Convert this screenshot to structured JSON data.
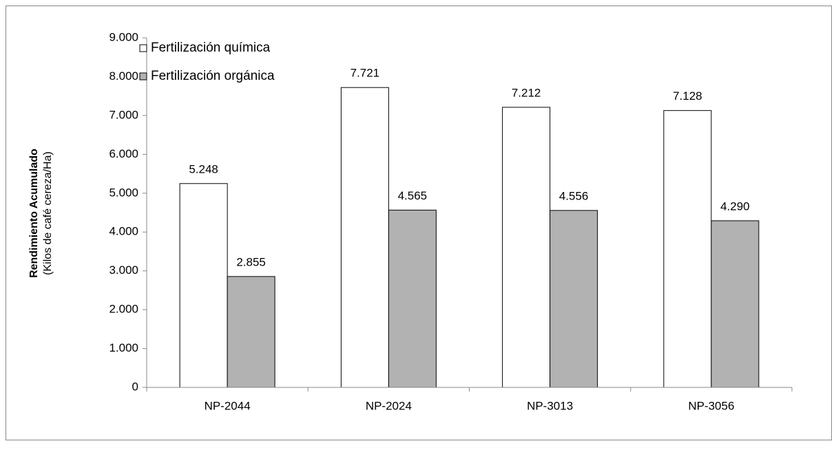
{
  "chart_data": {
    "type": "bar",
    "ylabel": "Rendimiento Acumulado",
    "ylabel_unit": "(Kilos de café cereza/Ha)",
    "categories": [
      "NP-2044",
      "NP-2024",
      "NP-3013",
      "NP-3056"
    ],
    "series": [
      {
        "name": "Fertilización química",
        "color": "#ffffff",
        "values": [
          5248,
          7721,
          7212,
          7128
        ],
        "value_labels": [
          "5.248",
          "7.721",
          "7.212",
          "7.128"
        ]
      },
      {
        "name": "Fertilización orgánica",
        "color": "#b2b2b2",
        "values": [
          2855,
          4565,
          4556,
          4290
        ],
        "value_labels": [
          "2.855",
          "4.565",
          "4.556",
          "4.290"
        ]
      }
    ],
    "ylim": [
      0,
      9000
    ],
    "yticks": [
      0,
      {
        "value": 1000,
        "label": "1.000"
      },
      {
        "value": 2000,
        "label": "2.000"
      },
      {
        "value": 3000,
        "label": "3.000"
      },
      {
        "value": 4000,
        "label": "4.000"
      },
      {
        "value": 5000,
        "label": "5.000"
      },
      {
        "value": 6000,
        "label": "6.000"
      },
      {
        "value": 7000,
        "label": "7.000"
      },
      {
        "value": 8000,
        "label": "8.000"
      },
      {
        "value": 9000,
        "label": "9.000"
      }
    ],
    "grid": false,
    "legend": "top-left"
  }
}
